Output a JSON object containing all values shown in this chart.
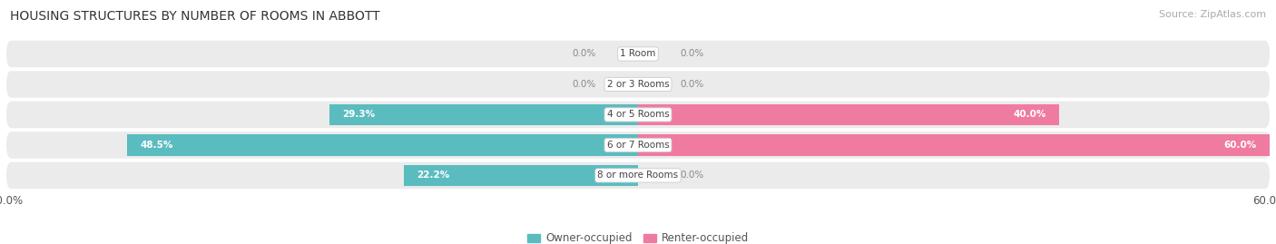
{
  "title": "HOUSING STRUCTURES BY NUMBER OF ROOMS IN ABBOTT",
  "source": "Source: ZipAtlas.com",
  "categories": [
    "1 Room",
    "2 or 3 Rooms",
    "4 or 5 Rooms",
    "6 or 7 Rooms",
    "8 or more Rooms"
  ],
  "owner_values": [
    0.0,
    0.0,
    29.3,
    48.5,
    22.2
  ],
  "renter_values": [
    0.0,
    0.0,
    40.0,
    60.0,
    0.0
  ],
  "owner_color": "#5bbcbf",
  "renter_color": "#f07ba0",
  "row_bg_color": "#ebebeb",
  "max_val": 60.0,
  "x_min": -60.0,
  "x_max": 60.0,
  "title_fontsize": 10,
  "source_fontsize": 8,
  "tick_fontsize": 8.5,
  "legend_fontsize": 8.5,
  "bar_label_fontsize": 7.5,
  "category_fontsize": 7.5
}
